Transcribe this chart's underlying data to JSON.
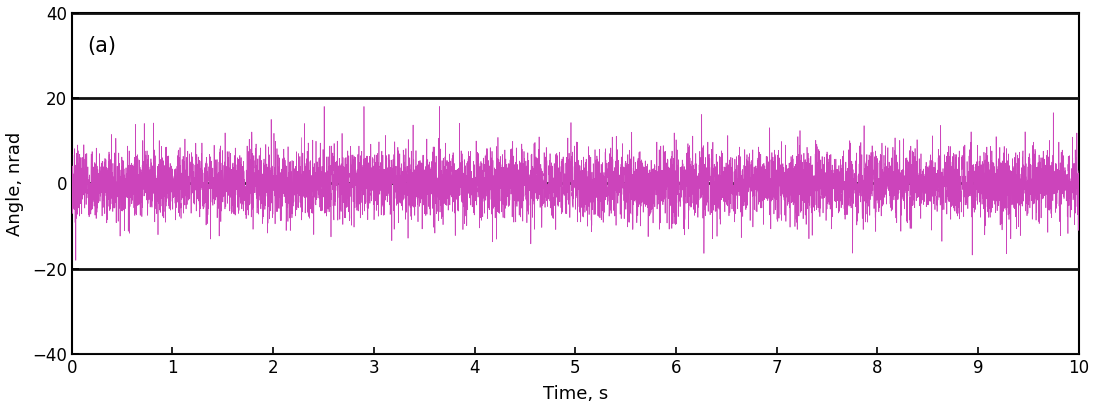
{
  "title": "",
  "xlabel": "Time, s",
  "ylabel": "Angle, nrad",
  "xlim": [
    0,
    10
  ],
  "ylim": [
    -40,
    40
  ],
  "xticks": [
    0,
    1,
    2,
    3,
    4,
    5,
    6,
    7,
    8,
    9,
    10
  ],
  "yticks": [
    -40,
    -20,
    0,
    20,
    40
  ],
  "signal_color": "#cc44bb",
  "signal_std": 4.0,
  "n_points": 8000,
  "label": "(a)",
  "background_color": "#ffffff",
  "linewidth": 0.5,
  "grid_color": "#111111",
  "grid_linewidth": 2.0,
  "label_fontsize": 13,
  "tick_fontsize": 12,
  "annotation_fontsize": 15,
  "spike_count": 30,
  "spike_min": 10,
  "spike_max": 16
}
